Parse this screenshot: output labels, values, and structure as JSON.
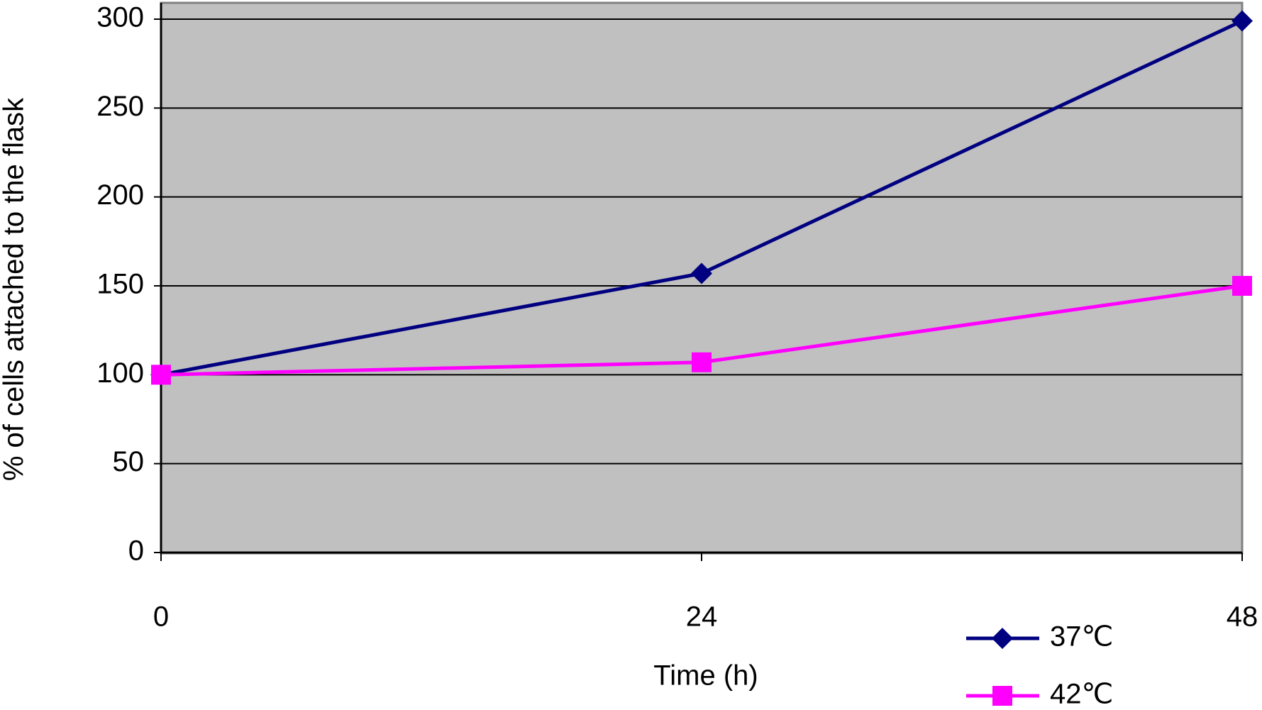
{
  "chart_data": {
    "type": "line",
    "x_label": "Time (h)",
    "y_label": "% of cells attached to the flask",
    "x": [
      0,
      24,
      48
    ],
    "xlim": [
      0,
      48
    ],
    "xticks": [
      0,
      24,
      48
    ],
    "ylim": [
      0,
      300
    ],
    "yticks": [
      0,
      50,
      100,
      150,
      200,
      250,
      300
    ],
    "grid": true,
    "series": [
      {
        "name": "37℃",
        "color": "#000080",
        "marker": "diamond",
        "values": [
          100,
          157,
          299
        ]
      },
      {
        "name": "42℃",
        "color": "#ff00ff",
        "marker": "square",
        "values": [
          100,
          107,
          150
        ]
      }
    ]
  }
}
